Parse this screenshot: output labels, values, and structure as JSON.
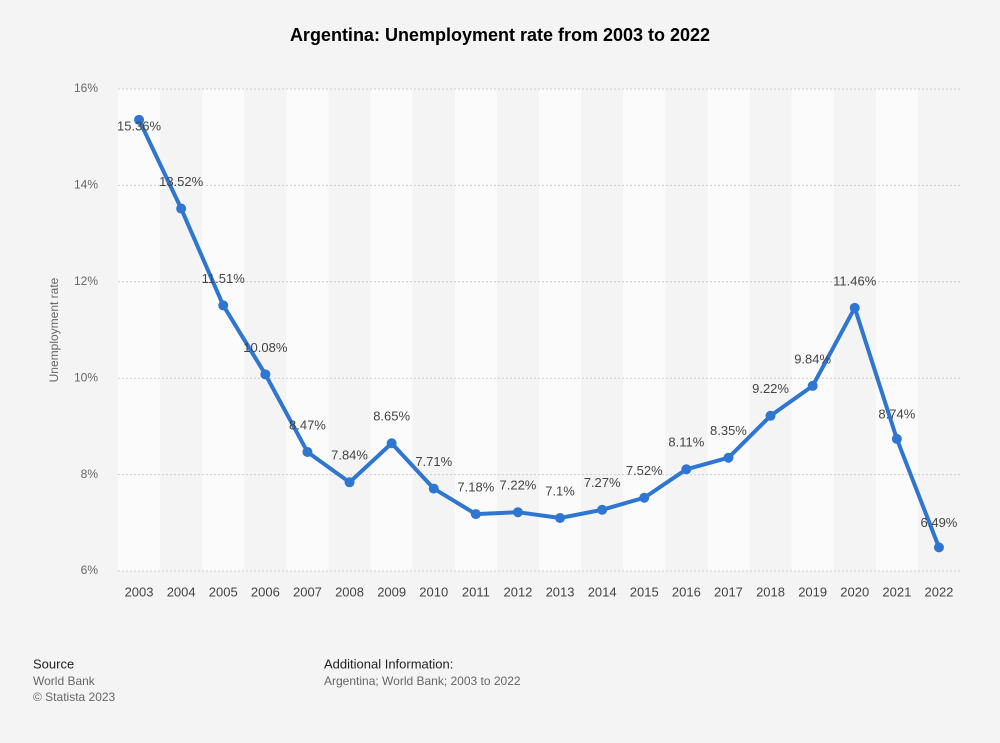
{
  "chart_data": {
    "type": "line",
    "title": "Argentina: Unemployment rate from 2003 to 2022",
    "y_label": "Unemployment rate",
    "categories": [
      "2003",
      "2004",
      "2005",
      "2006",
      "2007",
      "2008",
      "2009",
      "2010",
      "2011",
      "2012",
      "2013",
      "2014",
      "2015",
      "2016",
      "2017",
      "2018",
      "2019",
      "2020",
      "2021",
      "2022"
    ],
    "series": [
      {
        "name": "Unemployment rate",
        "color": "#2f76d2",
        "values": [
          15.36,
          13.52,
          11.51,
          10.08,
          8.47,
          7.84,
          8.65,
          7.71,
          7.18,
          7.22,
          7.1,
          7.27,
          7.52,
          8.11,
          8.35,
          9.22,
          9.84,
          11.46,
          8.74,
          6.49
        ],
        "value_labels": [
          "15.36%",
          "13.52%",
          "11.51%",
          "10.08%",
          "8.47%",
          "7.84%",
          "8.65%",
          "7.71%",
          "7.18%",
          "7.22%",
          "7.1%",
          "7.27%",
          "7.52%",
          "8.11%",
          "8.35%",
          "9.22%",
          "9.84%",
          "11.46%",
          "8.74%",
          "6.49%"
        ]
      }
    ],
    "ylim": [
      6,
      16
    ],
    "yticks": [
      {
        "value": 6,
        "label": "6%"
      },
      {
        "value": 8,
        "label": "8%"
      },
      {
        "value": 10,
        "label": "10%"
      },
      {
        "value": 12,
        "label": "12%"
      },
      {
        "value": 14,
        "label": "14%"
      },
      {
        "value": 16,
        "label": "16%"
      }
    ],
    "grid": true
  },
  "footer": {
    "source_title": "Source",
    "source": "World Bank",
    "copyright": "© Statista 2023",
    "info_title": "Additional Information:",
    "info": "Argentina; World Bank; 2003 to 2022"
  }
}
